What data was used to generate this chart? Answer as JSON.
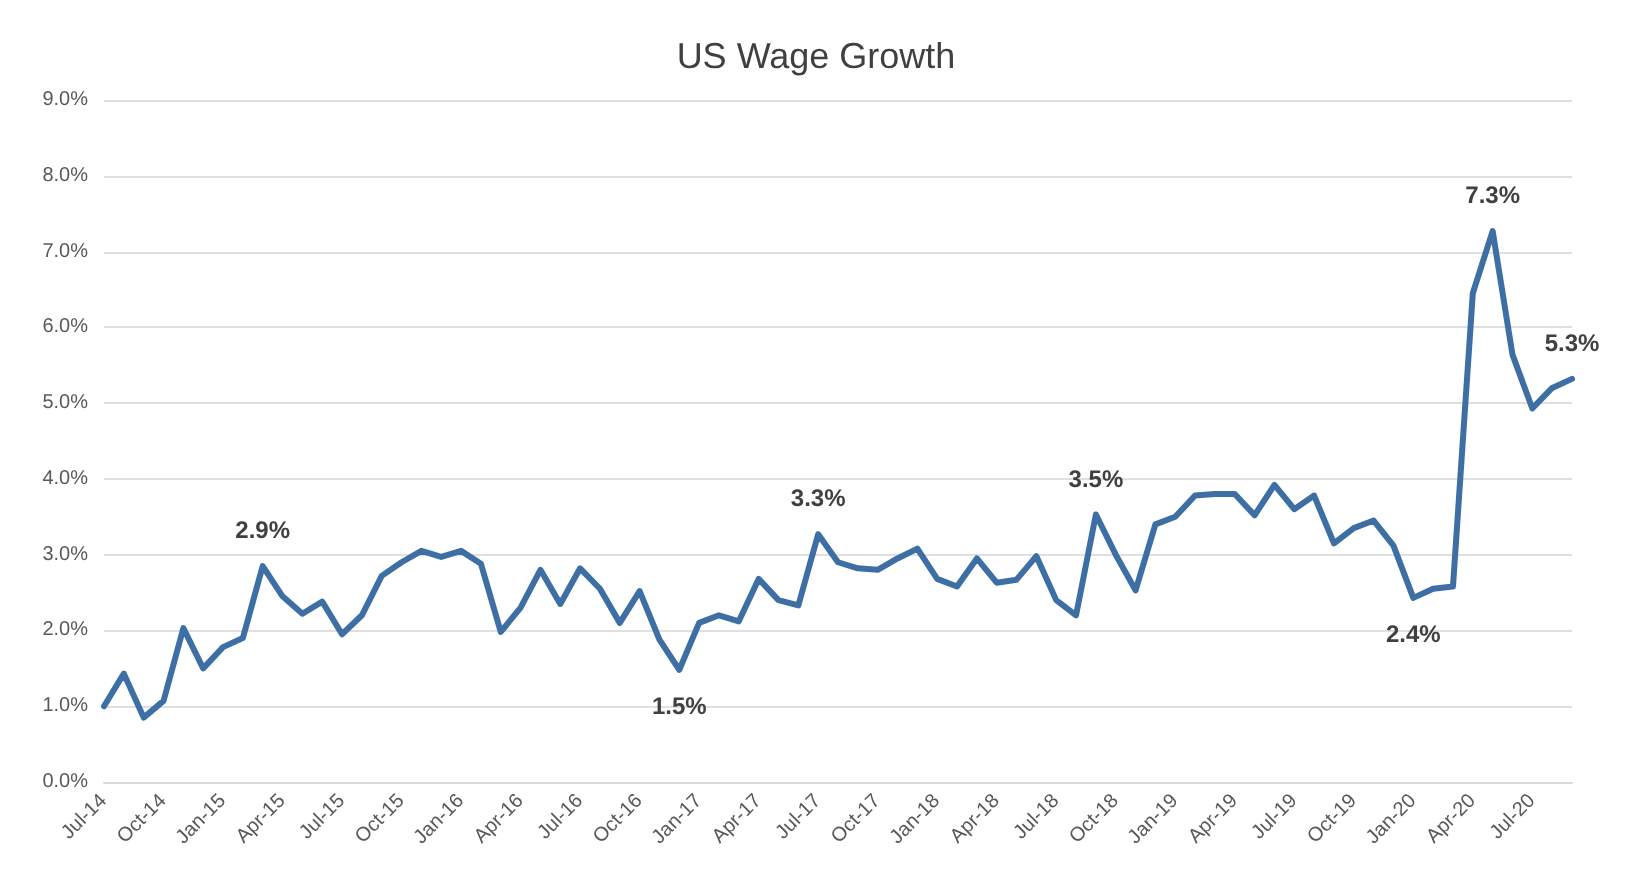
{
  "chart_data": {
    "type": "line",
    "title": "US Wage Growth",
    "categories": [
      "Jul-14",
      null,
      null,
      "Oct-14",
      null,
      null,
      "Jan-15",
      null,
      null,
      "Apr-15",
      null,
      null,
      "Jul-15",
      null,
      null,
      "Oct-15",
      null,
      null,
      "Jan-16",
      null,
      null,
      "Apr-16",
      null,
      null,
      "Jul-16",
      null,
      null,
      "Oct-16",
      null,
      null,
      "Jan-17",
      null,
      null,
      "Apr-17",
      null,
      null,
      "Jul-17",
      null,
      null,
      "Oct-17",
      null,
      null,
      "Jan-18",
      null,
      null,
      "Apr-18",
      null,
      null,
      "Jul-18",
      null,
      null,
      "Oct-18",
      null,
      null,
      "Jan-19",
      null,
      null,
      "Apr-19",
      null,
      null,
      "Jul-19",
      null,
      null,
      "Oct-19",
      null,
      null,
      "Jan-20",
      null,
      null,
      "Apr-20",
      null,
      null,
      "Jul-20",
      null,
      null
    ],
    "series": [
      {
        "color": "#3d6fa5",
        "values": [
          1.0,
          1.43,
          0.85,
          1.07,
          2.03,
          1.5,
          1.78,
          1.9,
          2.85,
          2.45,
          2.22,
          2.38,
          1.95,
          2.2,
          2.72,
          2.9,
          3.05,
          2.97,
          3.05,
          2.88,
          1.98,
          2.3,
          2.8,
          2.35,
          2.82,
          2.55,
          2.1,
          2.52,
          1.88,
          1.48,
          2.1,
          2.2,
          2.12,
          2.68,
          2.4,
          2.33,
          3.27,
          2.9,
          2.82,
          2.8,
          2.95,
          3.08,
          2.68,
          2.58,
          2.95,
          2.63,
          2.67,
          2.98,
          2.4,
          2.2,
          3.53,
          3.0,
          2.53,
          3.4,
          3.5,
          3.78,
          3.8,
          3.8,
          3.52,
          3.92,
          3.6,
          3.78,
          3.15,
          3.35,
          3.45,
          3.12,
          2.43,
          2.55,
          2.58,
          6.45,
          7.27,
          5.64,
          4.93,
          5.2,
          5.32
        ],
        "value_labels": [
          null,
          null,
          null,
          null,
          null,
          null,
          null,
          null,
          "2.9%",
          null,
          null,
          null,
          null,
          null,
          null,
          null,
          null,
          null,
          null,
          null,
          null,
          null,
          null,
          null,
          null,
          null,
          null,
          null,
          null,
          "1.5%",
          null,
          null,
          null,
          null,
          null,
          null,
          "3.3%",
          null,
          null,
          null,
          null,
          null,
          null,
          null,
          null,
          null,
          null,
          null,
          null,
          null,
          "3.5%",
          null,
          null,
          null,
          null,
          null,
          null,
          null,
          null,
          null,
          null,
          null,
          null,
          null,
          null,
          null,
          "2.4%",
          null,
          null,
          null,
          "7.3%",
          null,
          null,
          null,
          "5.3%"
        ]
      }
    ],
    "ylim": [
      0,
      9
    ],
    "yticks": [
      {
        "value": 0,
        "label": "0.0%"
      },
      {
        "value": 1,
        "label": "1.0%"
      },
      {
        "value": 2,
        "label": "2.0%"
      },
      {
        "value": 3,
        "label": "3.0%"
      },
      {
        "value": 4,
        "label": "4.0%"
      },
      {
        "value": 5,
        "label": "5.0%"
      },
      {
        "value": 6,
        "label": "6.0%"
      },
      {
        "value": 7,
        "label": "7.0%"
      },
      {
        "value": 8,
        "label": "8.0%"
      },
      {
        "value": 9,
        "label": "9.0%"
      }
    ],
    "grid": "y",
    "marker": "none",
    "line_style": "solid"
  }
}
